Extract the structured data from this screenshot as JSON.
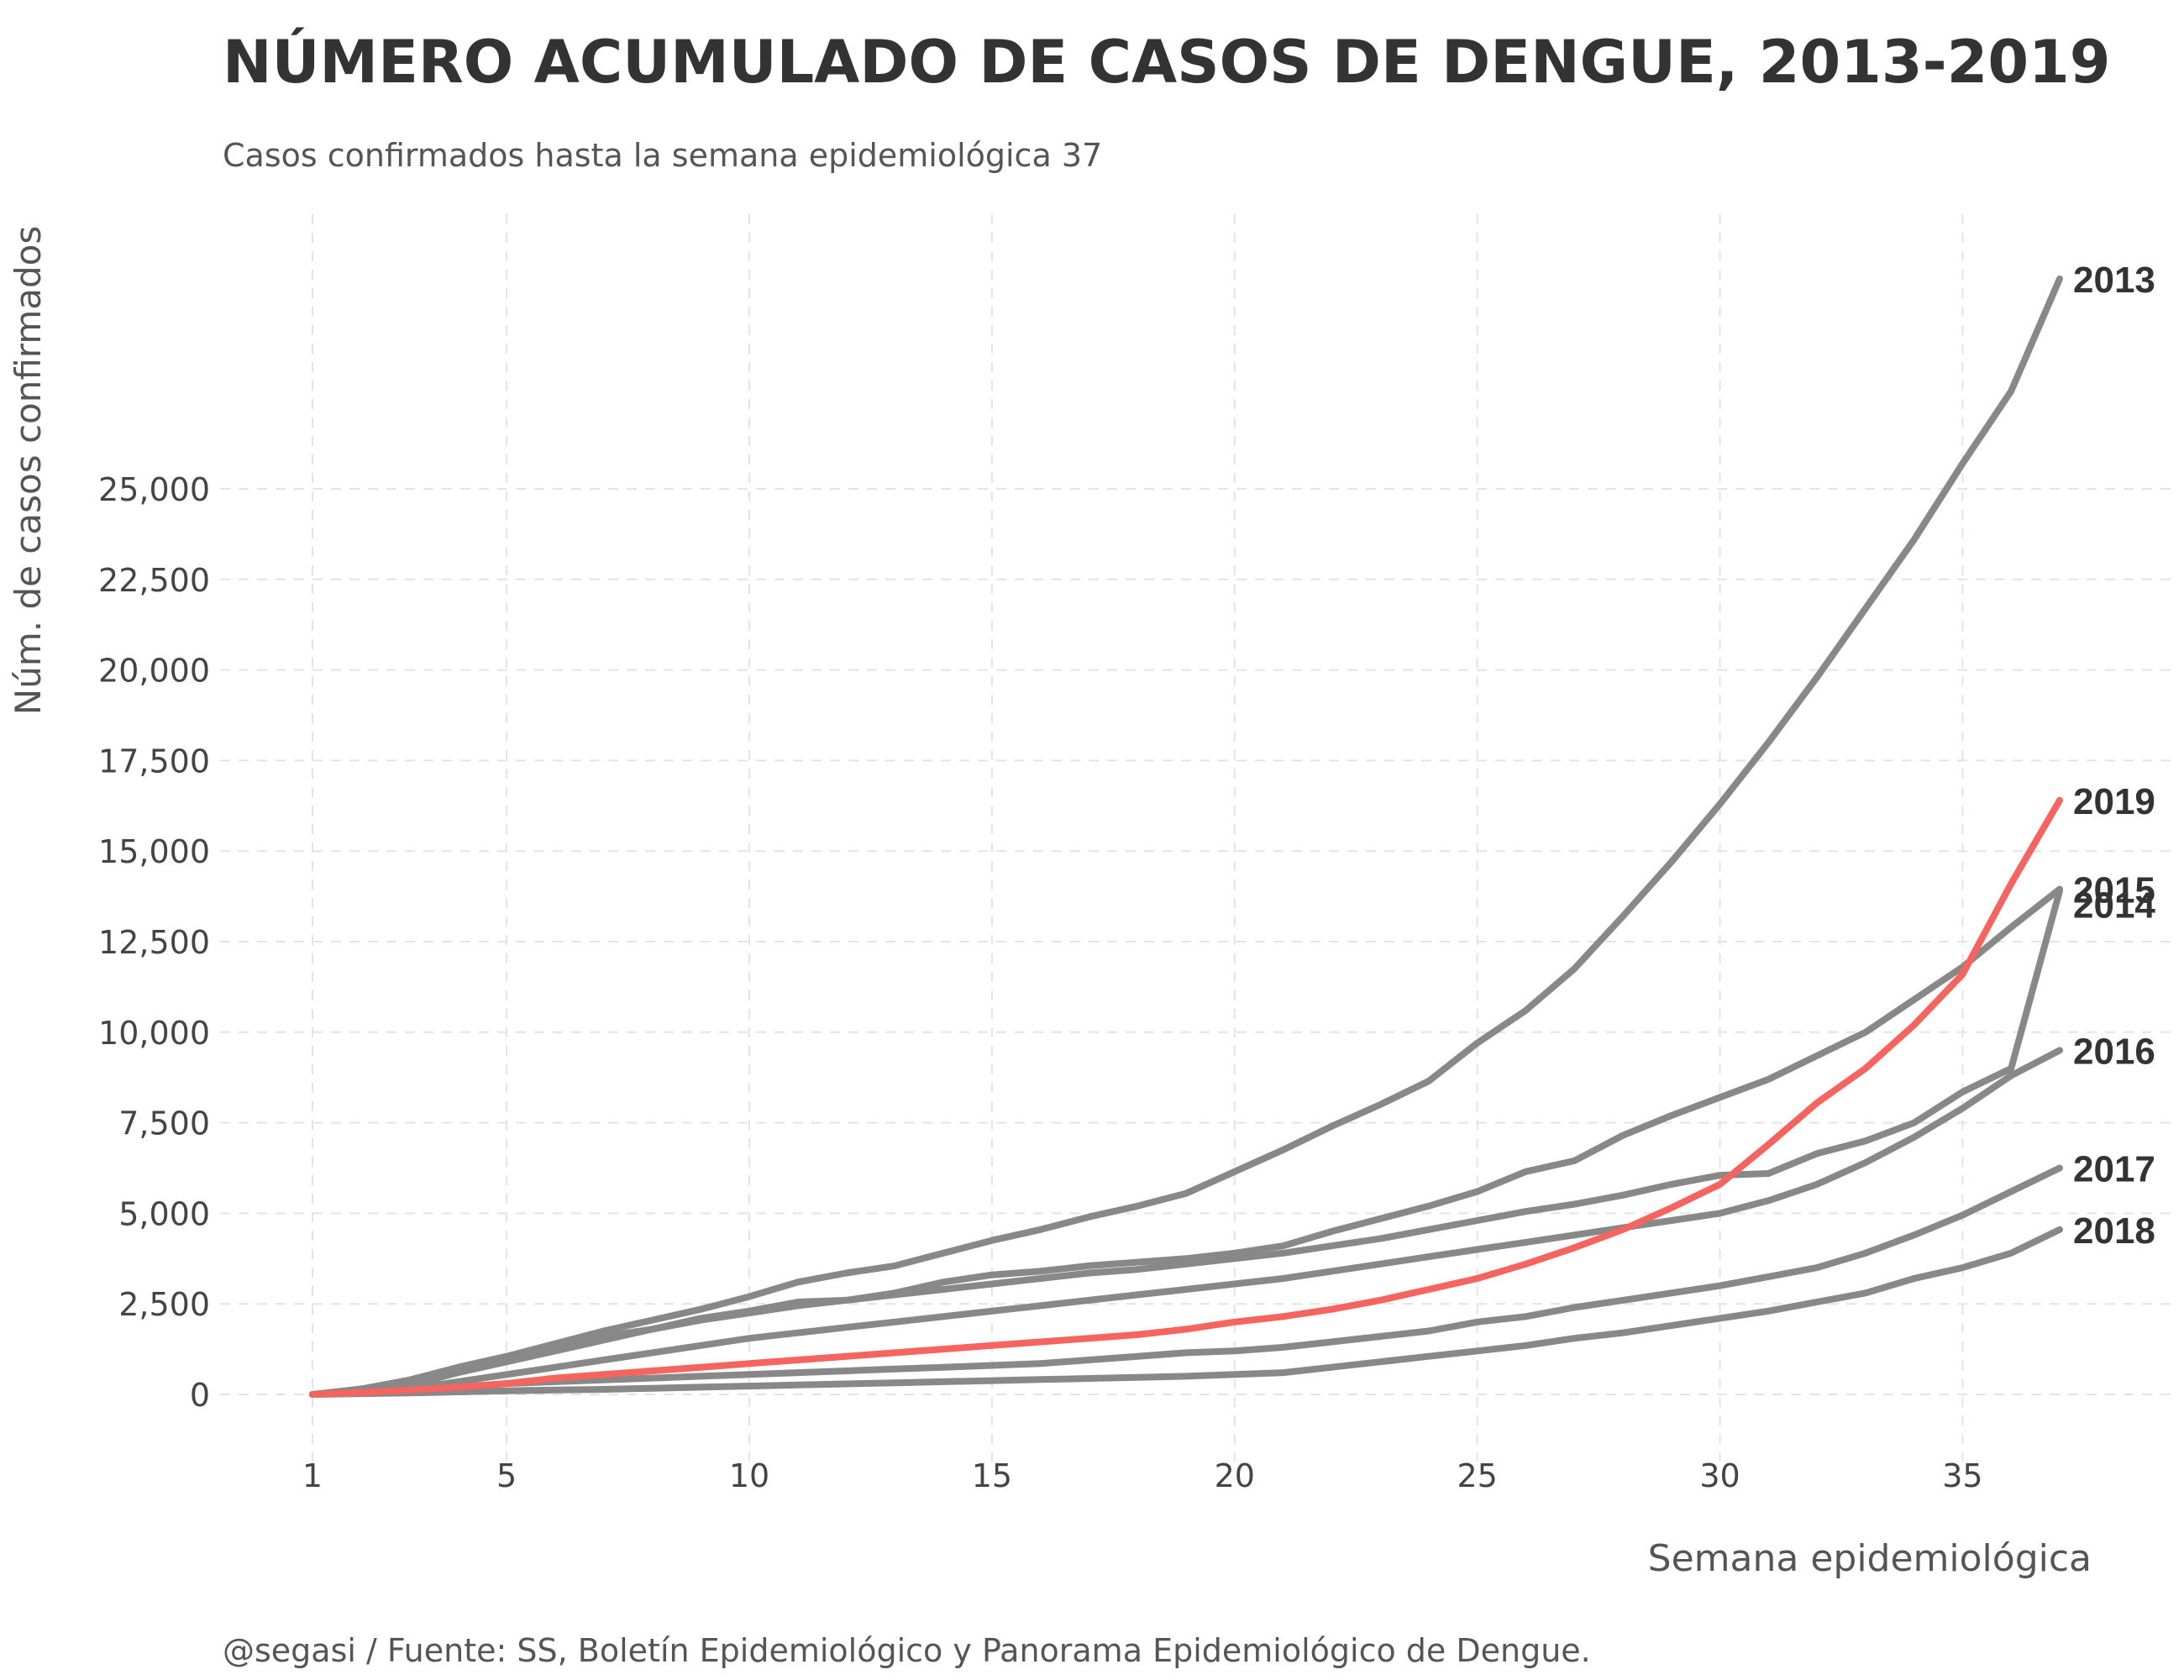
{
  "chart_data": {
    "type": "line",
    "title": "NÚMERO ACUMULADO DE CASOS DE DENGUE, 2013-2019",
    "subtitle": "Casos confirmados hasta la semana epidemiológica 37",
    "xlabel": "Semana epidemiológica",
    "ylabel": "Núm. de casos confirmados",
    "caption": "@segasi / Fuente: SS, Boletín Epidemiológico y Panorama Epidemiológico de Dengue.",
    "xlim": [
      1,
      37
    ],
    "ylim": [
      0,
      30000
    ],
    "x_ticks": [
      1,
      5,
      10,
      15,
      20,
      25,
      30,
      35
    ],
    "x_tick_labels": [
      "1",
      "5",
      "10",
      "15",
      "20",
      "25",
      "30",
      "35"
    ],
    "y_ticks": [
      0,
      2500,
      5000,
      7500,
      10000,
      12500,
      15000,
      17500,
      20000,
      22500,
      25000
    ],
    "y_tick_labels": [
      "0",
      "2,500",
      "5,000",
      "7,500",
      "10,000",
      "12,500",
      "15,000",
      "17,500",
      "20,000",
      "22,500",
      "25,000"
    ],
    "grid": true,
    "legend": "direct labels at line ends",
    "highlight_color": "#f5645f",
    "base_color": "#888888",
    "x": [
      1,
      2,
      3,
      4,
      5,
      6,
      7,
      8,
      9,
      10,
      11,
      12,
      13,
      14,
      15,
      16,
      17,
      18,
      19,
      20,
      21,
      22,
      23,
      24,
      25,
      26,
      27,
      28,
      29,
      30,
      31,
      32,
      33,
      34,
      35,
      36,
      37
    ],
    "series": [
      {
        "name": "2013",
        "highlight": false,
        "values": [
          0,
          150,
          400,
          750,
          1050,
          1400,
          1750,
          2050,
          2350,
          2700,
          3100,
          3350,
          3550,
          3900,
          4250,
          4550,
          4900,
          5200,
          5550,
          6150,
          6750,
          7400,
          8000,
          8650,
          9700,
          10600,
          11750,
          13200,
          14700,
          16300,
          18000,
          19800,
          21700,
          23600,
          25700,
          27700,
          30800
        ]
      },
      {
        "name": "2014",
        "highlight": false,
        "values": [
          0,
          100,
          250,
          600,
          900,
          1200,
          1500,
          1800,
          2050,
          2250,
          2450,
          2600,
          2750,
          2900,
          3050,
          3200,
          3350,
          3450,
          3600,
          3750,
          3900,
          4100,
          4300,
          4550,
          4800,
          5050,
          5250,
          5500,
          5800,
          6050,
          6100,
          6650,
          7000,
          7500,
          8350,
          9000,
          13900
        ]
      },
      {
        "name": "2015",
        "highlight": false,
        "values": [
          0,
          100,
          300,
          700,
          1000,
          1300,
          1600,
          1800,
          2100,
          2300,
          2550,
          2600,
          2800,
          3100,
          3300,
          3400,
          3550,
          3650,
          3750,
          3900,
          4100,
          4500,
          4850,
          5200,
          5600,
          6150,
          6450,
          7150,
          7700,
          8200,
          8700,
          9350,
          10000,
          10900,
          11800,
          12900,
          13950
        ]
      },
      {
        "name": "2016",
        "highlight": false,
        "values": [
          0,
          50,
          150,
          350,
          550,
          750,
          950,
          1150,
          1350,
          1550,
          1700,
          1850,
          2000,
          2150,
          2300,
          2450,
          2600,
          2750,
          2900,
          3050,
          3200,
          3400,
          3600,
          3800,
          4000,
          4200,
          4400,
          4600,
          4800,
          5000,
          5350,
          5800,
          6400,
          7100,
          7900,
          8800,
          9500
        ]
      },
      {
        "name": "2017",
        "highlight": false,
        "values": [
          0,
          50,
          100,
          200,
          300,
          350,
          400,
          450,
          500,
          550,
          600,
          650,
          700,
          750,
          800,
          850,
          950,
          1050,
          1150,
          1200,
          1300,
          1450,
          1600,
          1750,
          2000,
          2150,
          2400,
          2600,
          2800,
          3000,
          3250,
          3500,
          3900,
          4400,
          4950,
          5600,
          6250
        ]
      },
      {
        "name": "2018",
        "highlight": false,
        "values": [
          0,
          20,
          40,
          70,
          100,
          120,
          140,
          170,
          200,
          230,
          260,
          290,
          320,
          350,
          380,
          410,
          440,
          470,
          500,
          550,
          600,
          750,
          900,
          1050,
          1200,
          1350,
          1550,
          1700,
          1900,
          2100,
          2300,
          2550,
          2800,
          3200,
          3500,
          3900,
          4550
        ]
      },
      {
        "name": "2019",
        "highlight": true,
        "values": [
          0,
          50,
          120,
          200,
          300,
          450,
          550,
          650,
          750,
          850,
          950,
          1050,
          1150,
          1250,
          1350,
          1450,
          1550,
          1650,
          1800,
          2000,
          2150,
          2350,
          2600,
          2900,
          3200,
          3600,
          4050,
          4550,
          5150,
          5800,
          6900,
          8050,
          9000,
          10200,
          11600,
          14100,
          16400
        ]
      }
    ]
  }
}
